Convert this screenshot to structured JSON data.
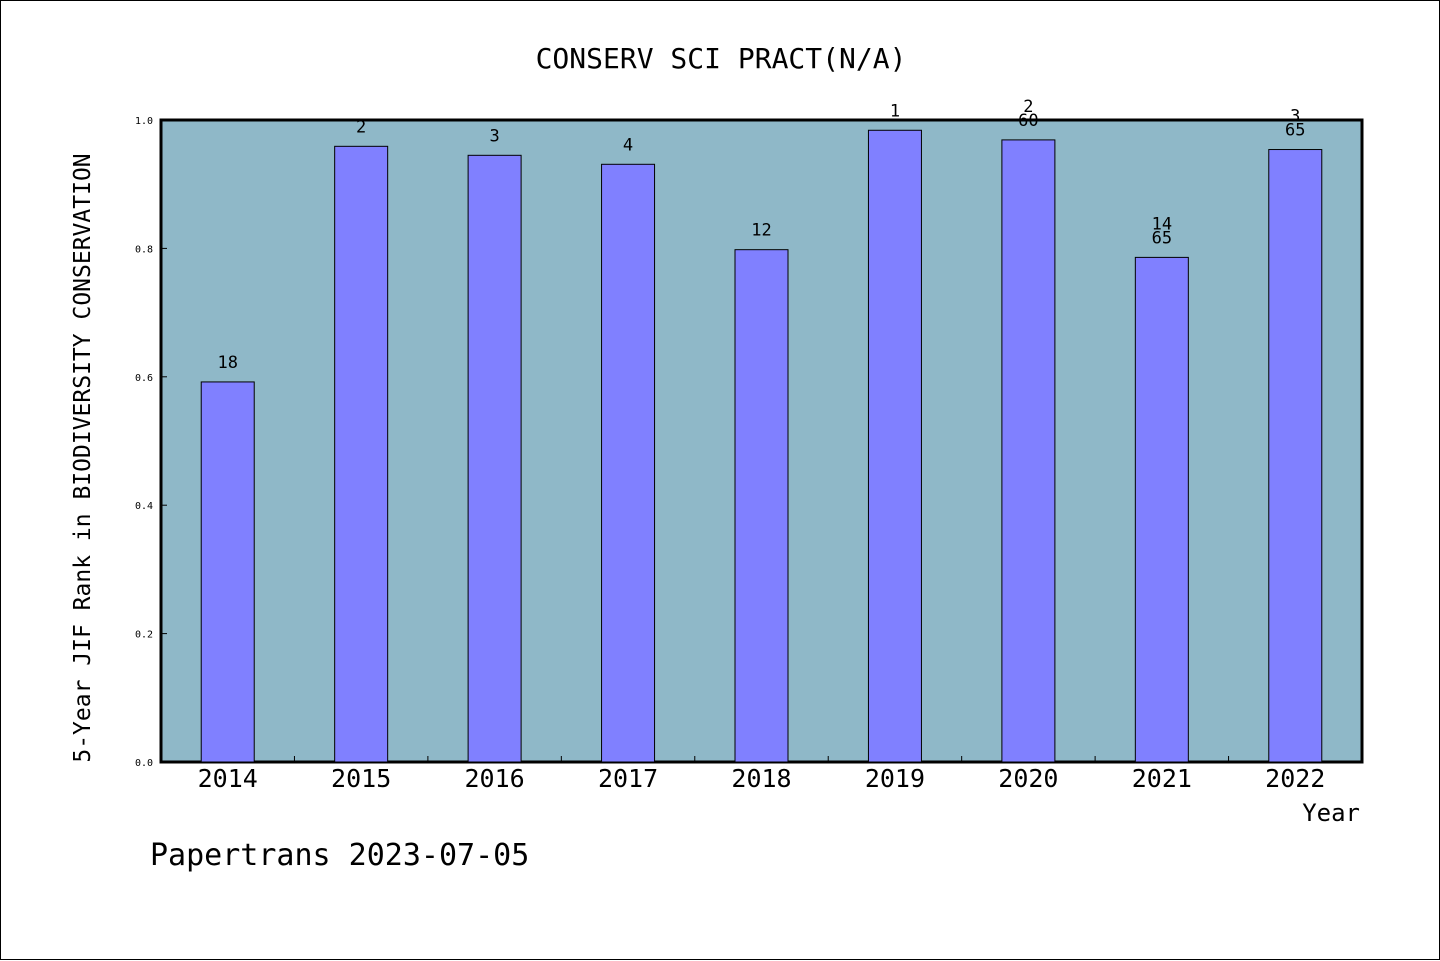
{
  "chart_data": {
    "type": "bar",
    "title": "CONSERV SCI PRACT(N/A)",
    "xlabel": "Year",
    "ylabel": "5-Year JIF Rank in BIODIVERSITY CONSERVATION",
    "ylim": [
      0,
      1.0
    ],
    "yticks": [
      "0.0",
      "0.2",
      "0.4",
      "0.6",
      "0.8",
      "1.0"
    ],
    "grid": false,
    "categories": [
      "2014",
      "2015",
      "2016",
      "2017",
      "2018",
      "2019",
      "2020",
      "2021",
      "2022"
    ],
    "values": [
      0.592,
      0.959,
      0.945,
      0.931,
      0.798,
      0.984,
      0.969,
      0.786,
      0.954
    ],
    "rank_labels": [
      [
        "18"
      ],
      [
        "2"
      ],
      [
        "3"
      ],
      [
        "4"
      ],
      [
        "12"
      ],
      [
        "1"
      ],
      [
        "2",
        "60"
      ],
      [
        "14",
        "65"
      ],
      [
        "3",
        "65"
      ]
    ],
    "bar_color": "#8080ff",
    "plot_background": "#8fb8c8"
  },
  "footer": {
    "credit": "Papertrans 2023-07-05"
  }
}
